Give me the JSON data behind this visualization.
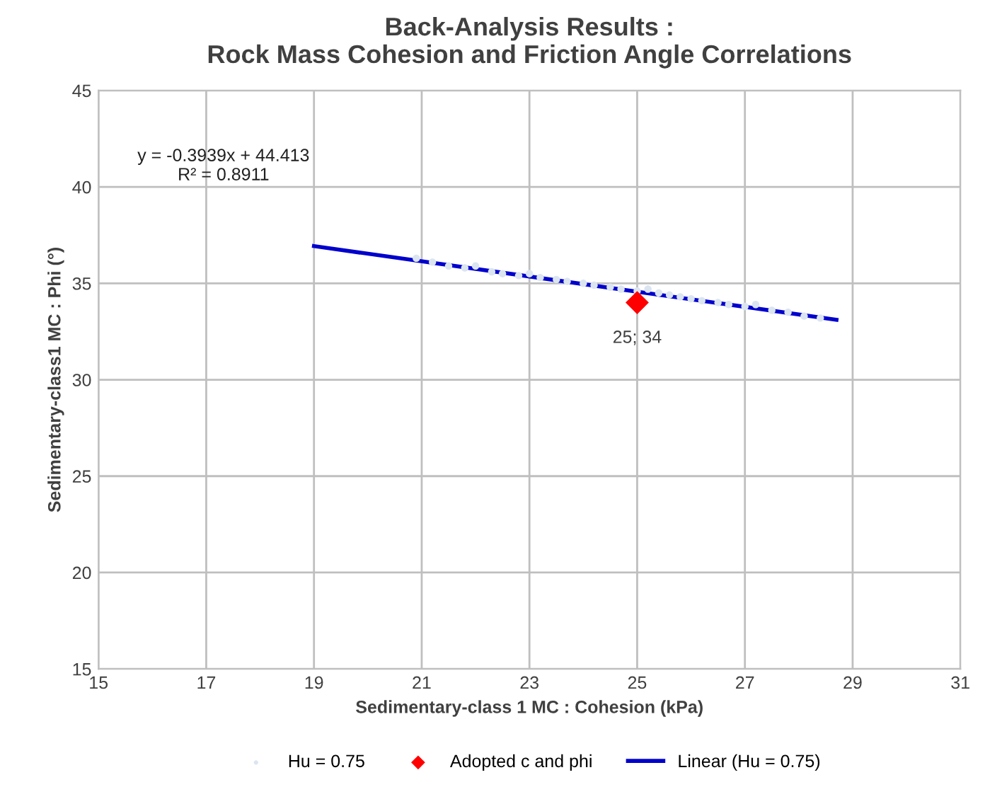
{
  "chart_data": {
    "type": "scatter",
    "title": "Back-Analysis Results :\nRock Mass Cohesion and Friction Angle Correlations",
    "xlabel": "Sedimentary-class 1 MC : Cohesion (kPa)",
    "ylabel": "Sedimentary-class1 MC : Phi (°)",
    "xlim": [
      15,
      31
    ],
    "xticks": [
      15,
      17,
      19,
      21,
      23,
      25,
      27,
      29,
      31
    ],
    "ylim": [
      15,
      45
    ],
    "yticks": [
      15,
      20,
      25,
      30,
      35,
      40,
      45
    ],
    "grid": true,
    "legend": "bottom",
    "annotations": [
      "y = -0.3939x + 44.413\nR² = 0.8911"
    ],
    "series": [
      {
        "name": "Hu = 0.75",
        "marker": "circle",
        "color": "#dbe5f1",
        "x": [
          20.9,
          21.2,
          21.5,
          21.8,
          22.0,
          22.3,
          22.5,
          22.8,
          23.0,
          23.2,
          23.5,
          23.7,
          24.0,
          24.2,
          24.5,
          24.7,
          25.0,
          25.2,
          25.4,
          25.6,
          25.8,
          26.0,
          26.2,
          26.5,
          26.7,
          27.0,
          27.2,
          27.5,
          27.8,
          28.1,
          28.4
        ],
        "values": [
          36.3,
          36.1,
          35.9,
          35.8,
          35.9,
          35.6,
          35.5,
          35.4,
          35.5,
          35.3,
          35.2,
          35.1,
          35.0,
          34.9,
          34.8,
          34.7,
          34.6,
          34.7,
          34.5,
          34.4,
          34.3,
          34.2,
          34.1,
          34.0,
          33.9,
          33.8,
          33.9,
          33.6,
          33.5,
          33.3,
          33.2
        ]
      },
      {
        "name": "Adopted c and phi",
        "marker": "diamond",
        "color": "#ff0000",
        "x": [
          25
        ],
        "values": [
          34
        ],
        "value_labels": [
          "25; 34"
        ]
      },
      {
        "name": "Linear (Hu = 0.75)",
        "type": "line",
        "marker": "none",
        "color": "#0000cc",
        "x": [
          19,
          28.7
        ],
        "values": [
          36.93,
          33.11
        ]
      }
    ]
  }
}
